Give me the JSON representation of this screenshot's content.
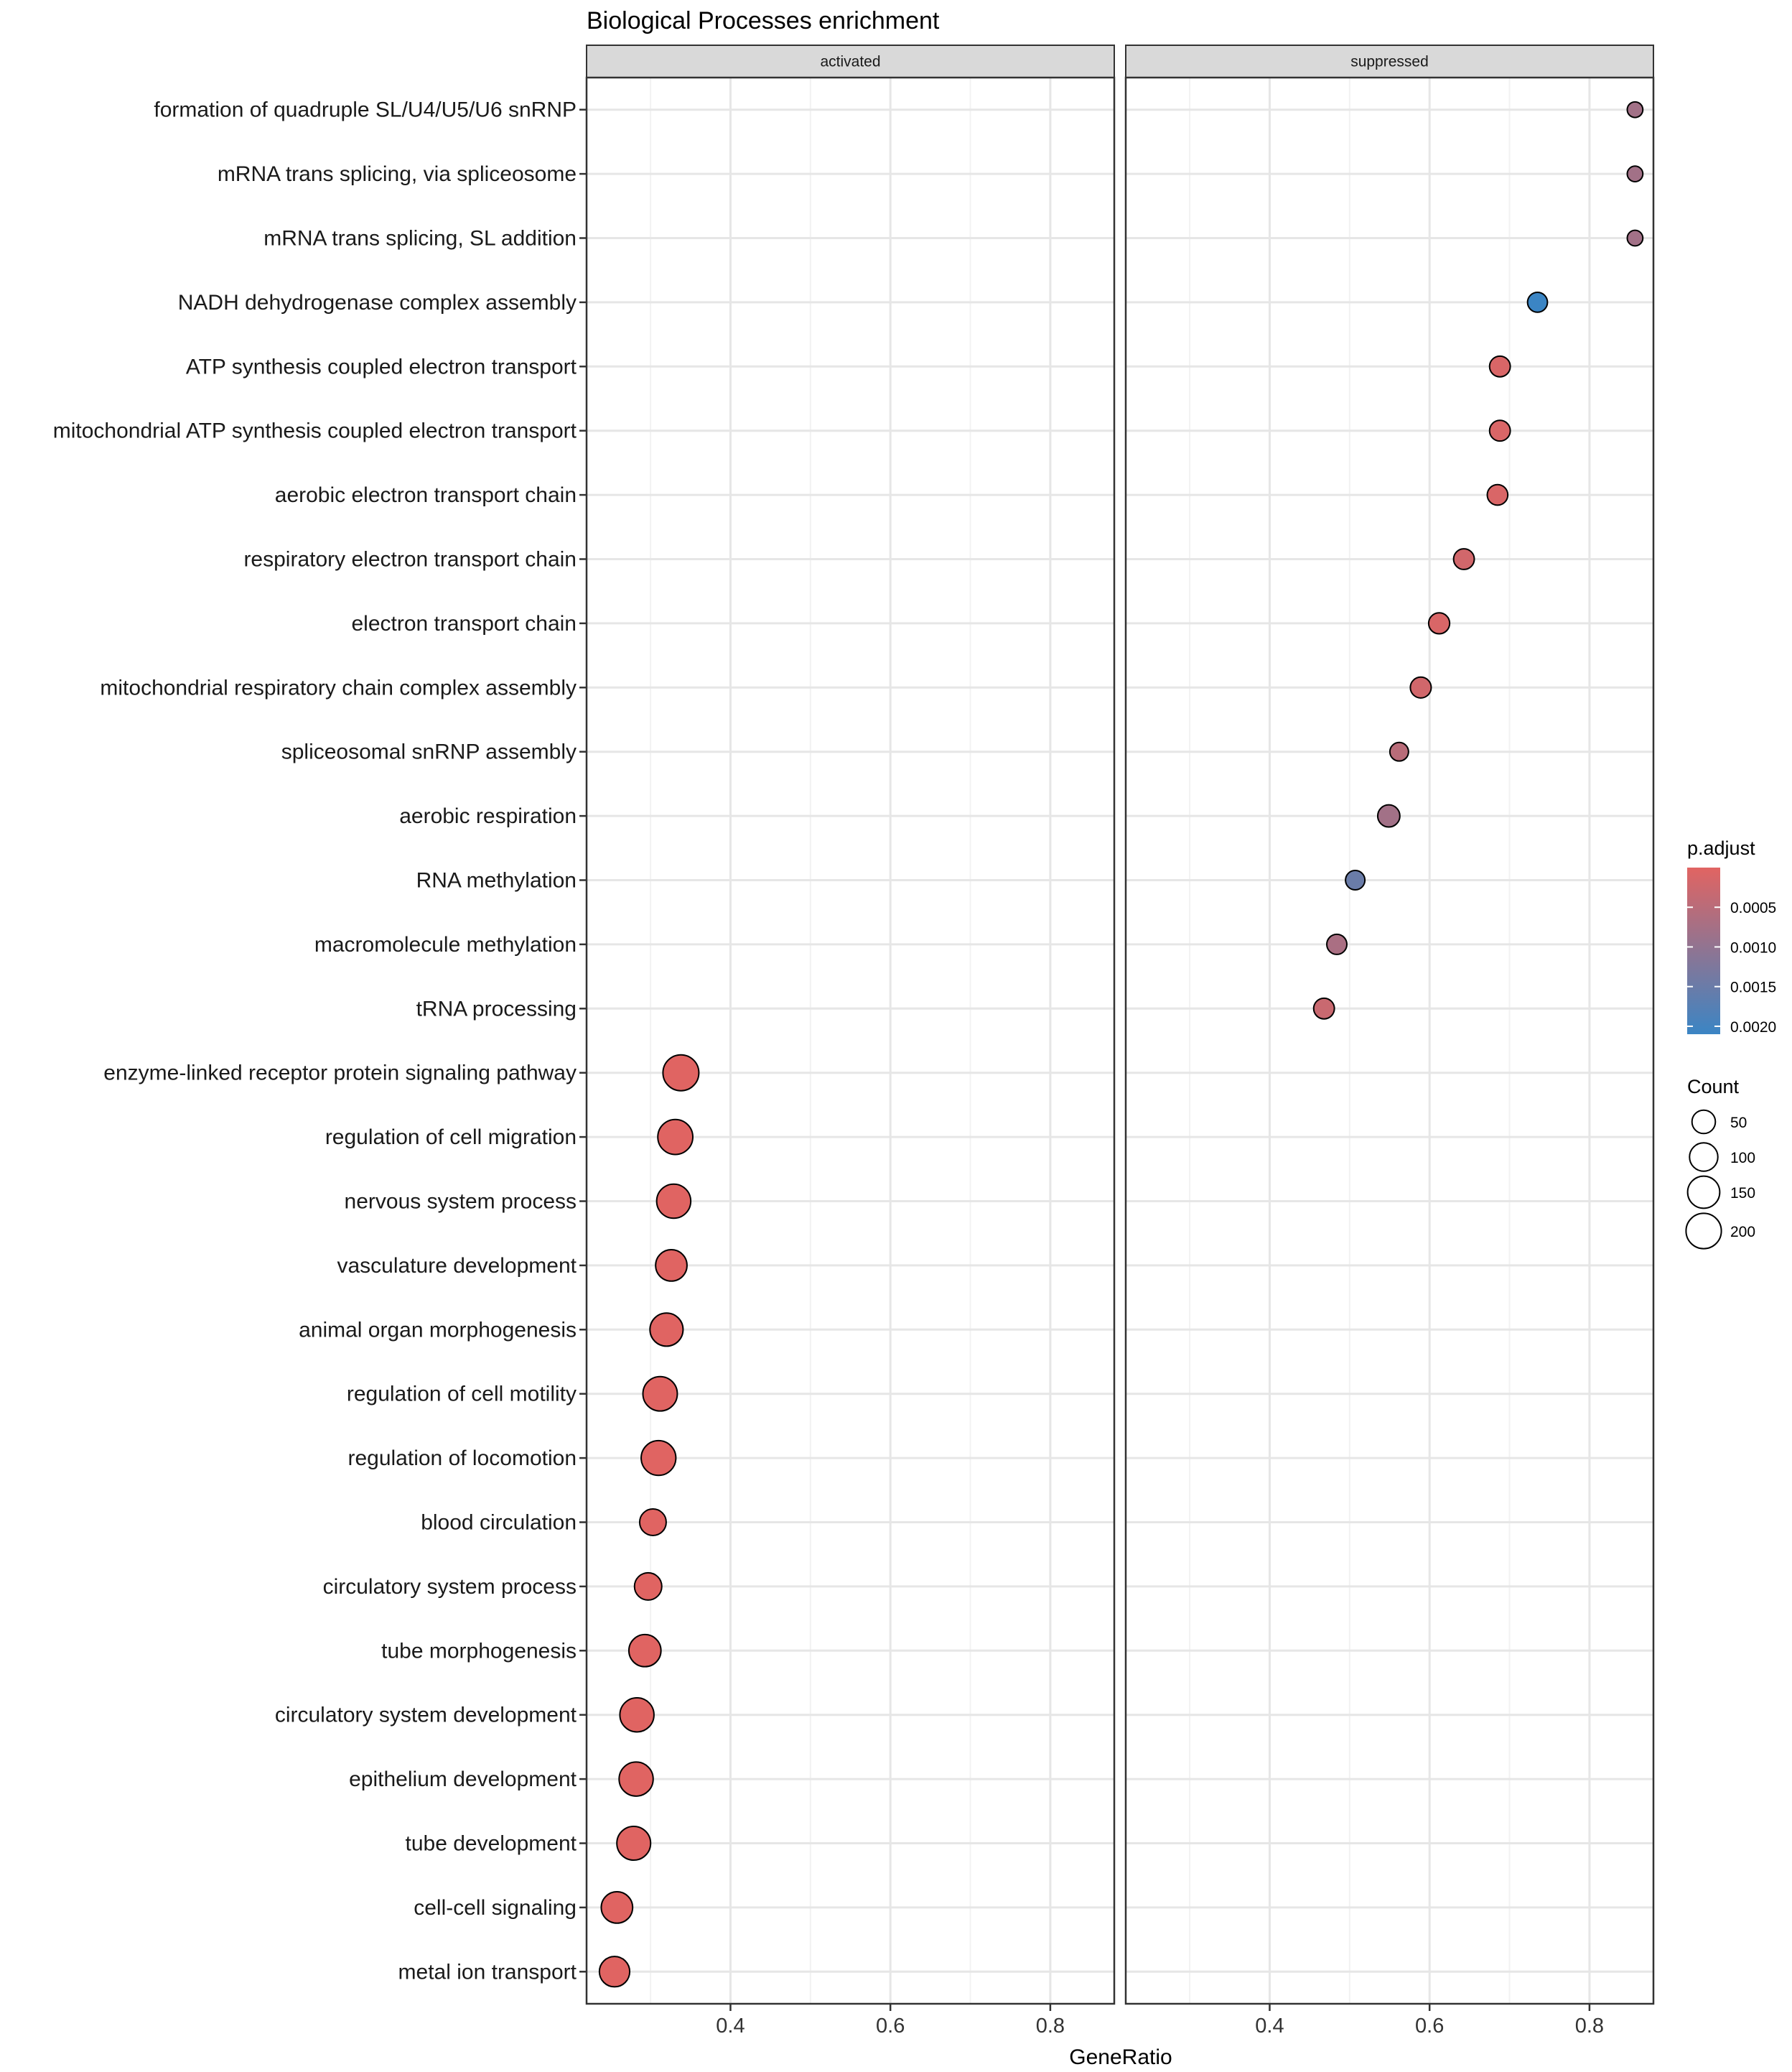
{
  "chart_data": {
    "type": "scatter",
    "title": "Biological Processes enrichment",
    "xlabel": "GeneRatio",
    "ylabel": "",
    "xlim": [
      0.22,
      0.88
    ],
    "x_ticks": [
      0.4,
      0.6,
      0.8
    ],
    "x_tick_labels": [
      "0.4",
      "0.6",
      "0.8"
    ],
    "grid": true,
    "legend_position": "right",
    "panels": [
      {
        "name": "activated",
        "label": "activated"
      },
      {
        "name": "suppressed",
        "label": "suppressed"
      }
    ],
    "categories": [
      "formation of quadruple SL/U4/U5/U6 snRNP",
      "mRNA trans splicing, via spliceosome",
      "mRNA trans splicing, SL addition",
      "NADH dehydrogenase complex assembly",
      "ATP synthesis coupled electron transport",
      "mitochondrial ATP synthesis coupled electron transport",
      "aerobic electron transport chain",
      "respiratory electron transport chain",
      "electron transport chain",
      "mitochondrial respiratory chain complex assembly",
      "spliceosomal snRNP assembly",
      "aerobic respiration",
      "RNA methylation",
      "macromolecule methylation",
      "tRNA processing",
      "enzyme-linked receptor protein signaling pathway",
      "regulation of cell migration",
      "nervous system process",
      "vasculature development",
      "animal organ morphogenesis",
      "regulation of cell motility",
      "regulation of locomotion",
      "blood circulation",
      "circulatory system process",
      "tube morphogenesis",
      "circulatory system development",
      "epithelium development",
      "tube development",
      "cell-cell signaling",
      "metal ion transport"
    ],
    "points": [
      {
        "panel": "suppressed",
        "category": "formation of quadruple SL/U4/U5/U6 snRNP",
        "gene_ratio": 0.857,
        "count": 6,
        "p_adjust": 0.0008
      },
      {
        "panel": "suppressed",
        "category": "mRNA trans splicing, via spliceosome",
        "gene_ratio": 0.857,
        "count": 6,
        "p_adjust": 0.0008
      },
      {
        "panel": "suppressed",
        "category": "mRNA trans splicing, SL addition",
        "gene_ratio": 0.857,
        "count": 6,
        "p_adjust": 0.0008
      },
      {
        "panel": "suppressed",
        "category": "NADH dehydrogenase complex assembly",
        "gene_ratio": 0.735,
        "count": 25,
        "p_adjust": 0.0021
      },
      {
        "panel": "suppressed",
        "category": "ATP synthesis coupled electron transport",
        "gene_ratio": 0.688,
        "count": 30,
        "p_adjust": 0.0001
      },
      {
        "panel": "suppressed",
        "category": "mitochondrial ATP synthesis coupled electron transport",
        "gene_ratio": 0.688,
        "count": 30,
        "p_adjust": 0.0001
      },
      {
        "panel": "suppressed",
        "category": "aerobic electron transport chain",
        "gene_ratio": 0.685,
        "count": 29,
        "p_adjust": 0.0001
      },
      {
        "panel": "suppressed",
        "category": "respiratory electron transport chain",
        "gene_ratio": 0.643,
        "count": 30,
        "p_adjust": 0.0002
      },
      {
        "panel": "suppressed",
        "category": "electron transport chain",
        "gene_ratio": 0.612,
        "count": 32,
        "p_adjust": 0.0001
      },
      {
        "panel": "suppressed",
        "category": "mitochondrial respiratory chain complex assembly",
        "gene_ratio": 0.589,
        "count": 31,
        "p_adjust": 0.0002
      },
      {
        "panel": "suppressed",
        "category": "spliceosomal snRNP assembly",
        "gene_ratio": 0.562,
        "count": 18,
        "p_adjust": 0.0005
      },
      {
        "panel": "suppressed",
        "category": "aerobic respiration",
        "gene_ratio": 0.549,
        "count": 40,
        "p_adjust": 0.0008
      },
      {
        "panel": "suppressed",
        "category": "RNA methylation",
        "gene_ratio": 0.507,
        "count": 22,
        "p_adjust": 0.0015
      },
      {
        "panel": "suppressed",
        "category": "macromolecule methylation",
        "gene_ratio": 0.484,
        "count": 26,
        "p_adjust": 0.0007
      },
      {
        "panel": "suppressed",
        "category": "tRNA processing",
        "gene_ratio": 0.468,
        "count": 30,
        "p_adjust": 0.0003
      },
      {
        "panel": "activated",
        "category": "enzyme-linked receptor protein signaling pathway",
        "gene_ratio": 0.338,
        "count": 210,
        "p_adjust": 1e-05
      },
      {
        "panel": "activated",
        "category": "regulation of cell migration",
        "gene_ratio": 0.331,
        "count": 195,
        "p_adjust": 1e-05
      },
      {
        "panel": "activated",
        "category": "nervous system process",
        "gene_ratio": 0.329,
        "count": 180,
        "p_adjust": 1e-05
      },
      {
        "panel": "activated",
        "category": "vasculature development",
        "gene_ratio": 0.326,
        "count": 140,
        "p_adjust": 1e-05
      },
      {
        "panel": "activated",
        "category": "animal organ morphogenesis",
        "gene_ratio": 0.32,
        "count": 165,
        "p_adjust": 1e-05
      },
      {
        "panel": "activated",
        "category": "regulation of cell motility",
        "gene_ratio": 0.312,
        "count": 185,
        "p_adjust": 1e-05
      },
      {
        "panel": "activated",
        "category": "regulation of locomotion",
        "gene_ratio": 0.31,
        "count": 190,
        "p_adjust": 1e-05
      },
      {
        "panel": "activated",
        "category": "blood circulation",
        "gene_ratio": 0.303,
        "count": 80,
        "p_adjust": 1e-05
      },
      {
        "panel": "activated",
        "category": "circulatory system process",
        "gene_ratio": 0.297,
        "count": 88,
        "p_adjust": 1e-05
      },
      {
        "panel": "activated",
        "category": "tube morphogenesis",
        "gene_ratio": 0.293,
        "count": 150,
        "p_adjust": 1e-05
      },
      {
        "panel": "activated",
        "category": "circulatory system development",
        "gene_ratio": 0.283,
        "count": 180,
        "p_adjust": 1e-05
      },
      {
        "panel": "activated",
        "category": "epithelium development",
        "gene_ratio": 0.282,
        "count": 180,
        "p_adjust": 1e-05
      },
      {
        "panel": "activated",
        "category": "tube development",
        "gene_ratio": 0.279,
        "count": 175,
        "p_adjust": 1e-05
      },
      {
        "panel": "activated",
        "category": "cell-cell signaling",
        "gene_ratio": 0.258,
        "count": 140,
        "p_adjust": 1e-05
      },
      {
        "panel": "activated",
        "category": "metal ion transport",
        "gene_ratio": 0.255,
        "count": 125,
        "p_adjust": 1e-05
      }
    ],
    "legend": {
      "color": {
        "title": "p.adjust",
        "min": 0.0,
        "max": 0.0021,
        "low_color": "#E16462",
        "high_color": "#3B85C4",
        "ticks": [
          0.0005,
          0.001,
          0.0015,
          0.002
        ],
        "tick_labels": [
          "0.0005",
          "0.0010",
          "0.0015",
          "0.0020"
        ]
      },
      "size": {
        "title": "Count",
        "values": [
          50,
          100,
          150,
          200
        ],
        "labels": [
          "50",
          "100",
          "150",
          "200"
        ]
      }
    }
  }
}
